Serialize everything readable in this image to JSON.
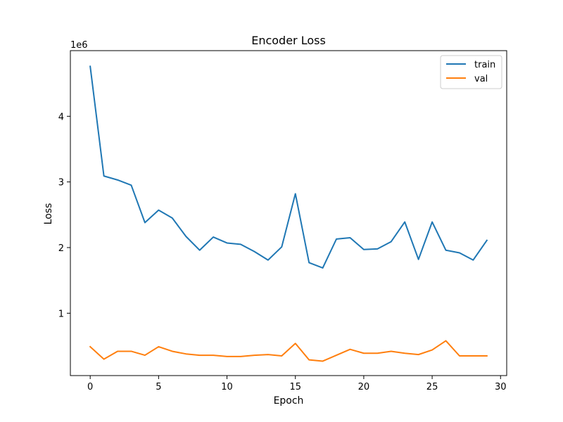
{
  "chart_data": {
    "type": "line",
    "title": "Encoder Loss",
    "xlabel": "Epoch",
    "ylabel": "Loss",
    "y_offset_label": "1e6",
    "x": [
      0,
      1,
      2,
      3,
      4,
      5,
      6,
      7,
      8,
      9,
      10,
      11,
      12,
      13,
      14,
      15,
      16,
      17,
      18,
      19,
      20,
      21,
      22,
      23,
      24,
      25,
      26,
      27,
      28,
      29
    ],
    "xlim": [
      -1.45,
      30.45
    ],
    "ylim": [
      0.05,
      5.0
    ],
    "xticks": [
      0,
      5,
      10,
      15,
      20,
      25,
      30
    ],
    "yticks": [
      1,
      2,
      3,
      4
    ],
    "xtick_labels": [
      "0",
      "5",
      "10",
      "15",
      "20",
      "25",
      "30"
    ],
    "ytick_labels": [
      "1",
      "2",
      "3",
      "4"
    ],
    "grid": false,
    "legend_position": "top-right",
    "series": [
      {
        "name": "train",
        "color": "#1f77b4",
        "values": [
          4.76,
          3.09,
          3.03,
          2.95,
          2.38,
          2.57,
          2.45,
          2.17,
          1.96,
          2.16,
          2.07,
          2.05,
          1.94,
          1.81,
          2.01,
          2.82,
          1.77,
          1.69,
          2.13,
          2.15,
          1.97,
          1.98,
          2.09,
          2.39,
          1.82,
          2.39,
          1.96,
          1.92,
          1.81,
          2.11
        ]
      },
      {
        "name": "val",
        "color": "#ff7f0e",
        "values": [
          0.49,
          0.3,
          0.42,
          0.42,
          0.36,
          0.49,
          0.42,
          0.38,
          0.36,
          0.36,
          0.34,
          0.34,
          0.36,
          0.37,
          0.35,
          0.54,
          0.29,
          0.27,
          0.36,
          0.45,
          0.39,
          0.39,
          0.42,
          0.39,
          0.37,
          0.44,
          0.58,
          0.35,
          0.35,
          0.35
        ]
      }
    ]
  }
}
